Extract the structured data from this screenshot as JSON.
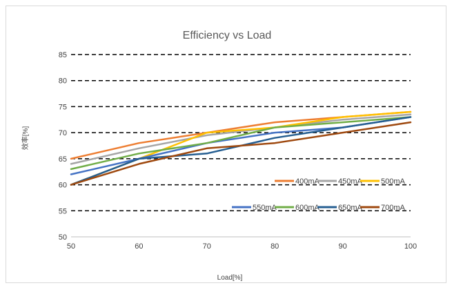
{
  "chart_data": {
    "type": "line",
    "title": "Efficiency vs Load",
    "xlabel": "Load[%]",
    "ylabel": "效率[%]",
    "x": [
      50,
      60,
      70,
      80,
      90,
      100
    ],
    "xlim": [
      50,
      100
    ],
    "ylim": [
      50,
      85
    ],
    "xticks": [
      "50",
      "60",
      "70",
      "80",
      "90",
      "100"
    ],
    "yticks": [
      "50",
      "55",
      "60",
      "65",
      "70",
      "75",
      "80",
      "85"
    ],
    "grid": "horizontal dashed",
    "legend_placement": "right",
    "series": [
      {
        "name": "400mA",
        "color": "#ed7d31",
        "values": [
          65,
          68,
          70,
          72,
          73,
          74
        ]
      },
      {
        "name": "450mA",
        "color": "#a5a5a5",
        "values": [
          64,
          67,
          69.5,
          71,
          72.5,
          73.5
        ]
      },
      {
        "name": "500mA",
        "color": "#ffc000",
        "values": [
          60,
          65,
          70,
          71,
          73,
          74
        ]
      },
      {
        "name": "550mA",
        "color": "#4472c4",
        "values": [
          62,
          65,
          68,
          70,
          71,
          73
        ]
      },
      {
        "name": "600mA",
        "color": "#70ad47",
        "values": [
          63,
          66,
          68,
          71,
          72,
          73
        ]
      },
      {
        "name": "650mA",
        "color": "#255e91",
        "values": [
          60,
          65,
          66,
          69,
          71,
          73
        ]
      },
      {
        "name": "700mA",
        "color": "#9e480e",
        "values": [
          60,
          64,
          67,
          68,
          70,
          72
        ]
      }
    ]
  }
}
